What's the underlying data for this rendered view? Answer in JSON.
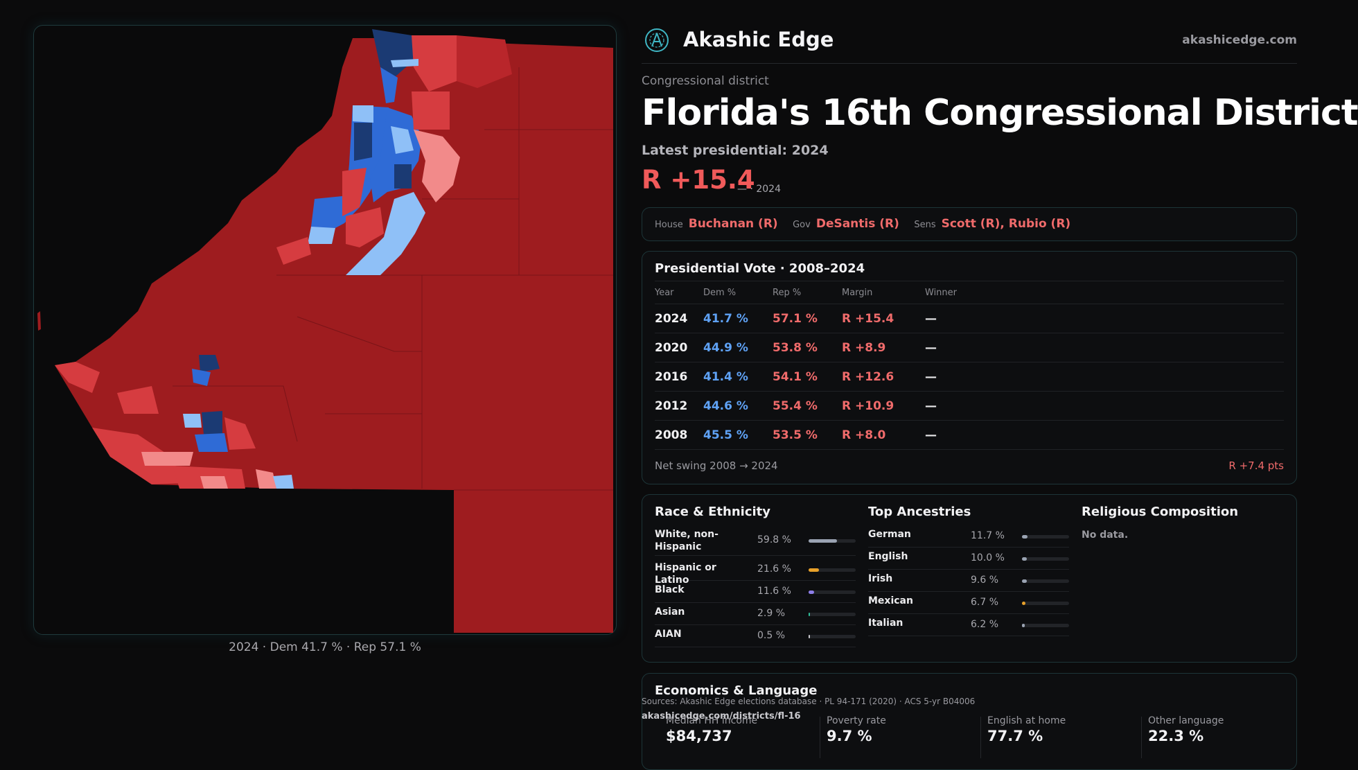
{
  "brand": {
    "name": "Akashic Edge",
    "url": "akashicedge.com"
  },
  "header": {
    "kicker": "Congressional district",
    "title": "Florida's 16th Congressional District",
    "subtitle": "Latest presidential: 2024",
    "margin": "R +15.4",
    "margin_sub": "— · 2024"
  },
  "map": {
    "caption": "2024 · Dem 41.7 % · Rep 57.1 %"
  },
  "officials": [
    {
      "label": "House",
      "value": "Buchanan (R)"
    },
    {
      "label": "Gov",
      "value": "DeSantis (R)"
    },
    {
      "label": "Sens",
      "value": "Scott (R), Rubio (R)"
    }
  ],
  "presidential": {
    "title": "Presidential Vote · 2008–2024",
    "headers": [
      "Year",
      "Dem %",
      "Rep %",
      "Margin",
      "Winner"
    ],
    "rows": [
      {
        "year": "2024",
        "dem": "41.7 %",
        "rep": "57.1 %",
        "margin": "R +15.4",
        "winner": "—"
      },
      {
        "year": "2020",
        "dem": "44.9 %",
        "rep": "53.8 %",
        "margin": "R +8.9",
        "winner": "—"
      },
      {
        "year": "2016",
        "dem": "41.4 %",
        "rep": "54.1 %",
        "margin": "R +12.6",
        "winner": "—"
      },
      {
        "year": "2012",
        "dem": "44.6 %",
        "rep": "55.4 %",
        "margin": "R +10.9",
        "winner": "—"
      },
      {
        "year": "2008",
        "dem": "45.5 %",
        "rep": "53.5 %",
        "margin": "R +8.0",
        "winner": "—"
      }
    ],
    "swing_label": "Net swing 2008 → 2024",
    "swing_value": "R +7.4 pts"
  },
  "race": {
    "title": "Race & Ethnicity",
    "items": [
      {
        "label": "White, non-Hispanic",
        "pct": "59.8 %",
        "value": 59.8,
        "color": "#9aa3b2"
      },
      {
        "label": "Hispanic or Latino",
        "pct": "21.6 %",
        "value": 21.6,
        "color": "#e8a12a"
      },
      {
        "label": "Black",
        "pct": "11.6 %",
        "value": 11.6,
        "color": "#8d7ee8"
      },
      {
        "label": "Asian",
        "pct": "2.9 %",
        "value": 2.9,
        "color": "#2fbf9a"
      },
      {
        "label": "AIAN",
        "pct": "0.5 %",
        "value": 0.5,
        "color": "#c9c9ce"
      }
    ]
  },
  "ancestry": {
    "title": "Top Ancestries",
    "items": [
      {
        "label": "German",
        "pct": "11.7 %",
        "value": 11.7,
        "color": "#9aa3b2"
      },
      {
        "label": "English",
        "pct": "10.0 %",
        "value": 10.0,
        "color": "#9aa3b2"
      },
      {
        "label": "Irish",
        "pct": "9.6 %",
        "value": 9.6,
        "color": "#9aa3b2"
      },
      {
        "label": "Mexican",
        "pct": "6.7 %",
        "value": 6.7,
        "color": "#e8a12a"
      },
      {
        "label": "Italian",
        "pct": "6.2 %",
        "value": 6.2,
        "color": "#9aa3b2"
      }
    ]
  },
  "religion": {
    "title": "Religious Composition",
    "empty": "No data."
  },
  "economics": {
    "title": "Economics & Language",
    "stats": [
      {
        "label": "Median HH income",
        "value": "$84,737"
      },
      {
        "label": "Poverty rate",
        "value": "9.7 %"
      },
      {
        "label": "English at home",
        "value": "77.7 %"
      },
      {
        "label": "Other language",
        "value": "22.3 %"
      }
    ]
  },
  "footer": {
    "sources": "Sources: Akashic Edge elections database · PL 94-171 (2020) · ACS 5-yr B04006",
    "url": "akashicedge.com/districts/fl-16"
  },
  "colors": {
    "rep_dark": "#9e1c1f",
    "rep_mid": "#d63c40",
    "rep_light": "#f28a8a",
    "dem_dark": "#1b3a73",
    "dem_mid": "#2f6bd6",
    "dem_light": "#8fc0f7",
    "accent": "#f05a5a"
  }
}
